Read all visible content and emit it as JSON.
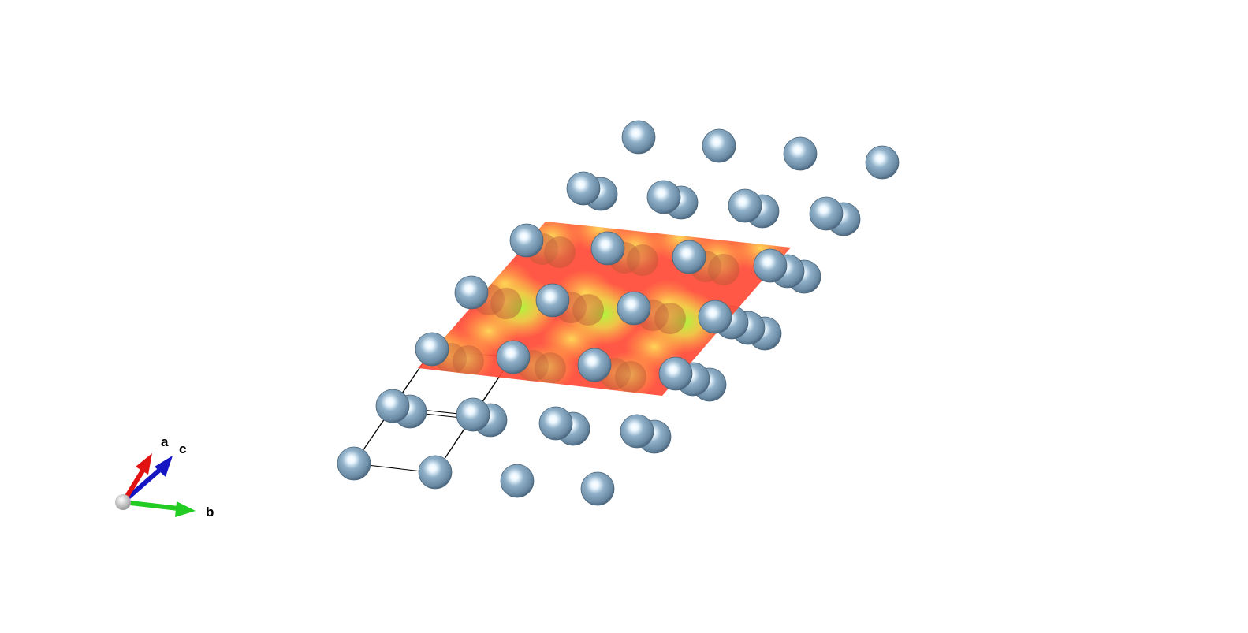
{
  "axes": {
    "a": {
      "label": "a",
      "color": "#e01010"
    },
    "b": {
      "label": "b",
      "color": "#22cc22"
    },
    "c": {
      "label": "c",
      "color": "#1010c0"
    },
    "origin_color": "#d8d8d8"
  },
  "colors": {
    "atom_base": "#7a9ab4",
    "atom_light": "#ffffff",
    "atom_dark": "#3c5468",
    "cell_edge": "#000000",
    "slice_low": "#ff3b30",
    "slice_mid": "#ffd24a",
    "slice_high": "#a6ff3a"
  },
  "icons": {
    "atom": "sphere-icon",
    "orientation": "axes-triad-icon"
  }
}
